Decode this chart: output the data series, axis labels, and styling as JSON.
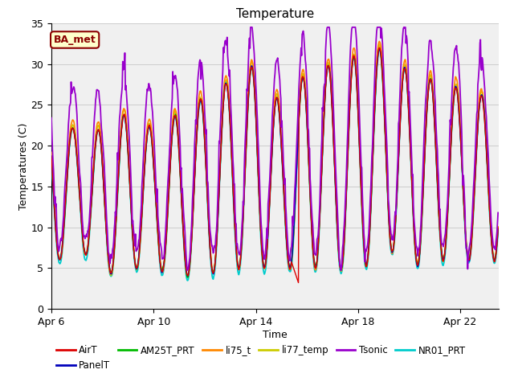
{
  "title": "Temperature",
  "xlabel": "Time",
  "ylabel": "Temperatures (C)",
  "ylim": [
    0,
    35
  ],
  "xlim_start": 6,
  "xlim_end": 23.5,
  "annotation_text": "BA_met",
  "grid_color": "#cccccc",
  "bg_color": "#e8e8e8",
  "plot_bg": "#f0f0f0",
  "series": [
    {
      "name": "AirT",
      "color": "#dd0000",
      "lw": 1.0,
      "zorder": 5
    },
    {
      "name": "PanelT",
      "color": "#0000bb",
      "lw": 1.0,
      "zorder": 5
    },
    {
      "name": "AM25T_PRT",
      "color": "#00bb00",
      "lw": 1.0,
      "zorder": 5
    },
    {
      "name": "li75_t",
      "color": "#ff8800",
      "lw": 1.2,
      "zorder": 5
    },
    {
      "name": "li77_temp",
      "color": "#cccc00",
      "lw": 1.2,
      "zorder": 5
    },
    {
      "name": "Tsonic",
      "color": "#9900cc",
      "lw": 1.3,
      "zorder": 6
    },
    {
      "name": "NR01_PRT",
      "color": "#00cccc",
      "lw": 1.3,
      "zorder": 4
    }
  ],
  "xtick_labels": [
    "Apr 6",
    "Apr 10",
    "Apr 14",
    "Apr 18",
    "Apr 22"
  ],
  "xtick_positions": [
    6,
    10,
    14,
    18,
    22
  ],
  "ytick_positions": [
    0,
    5,
    10,
    15,
    20,
    25,
    30,
    35
  ],
  "legend_ncol": 6,
  "legend_fontsize": 8.5
}
